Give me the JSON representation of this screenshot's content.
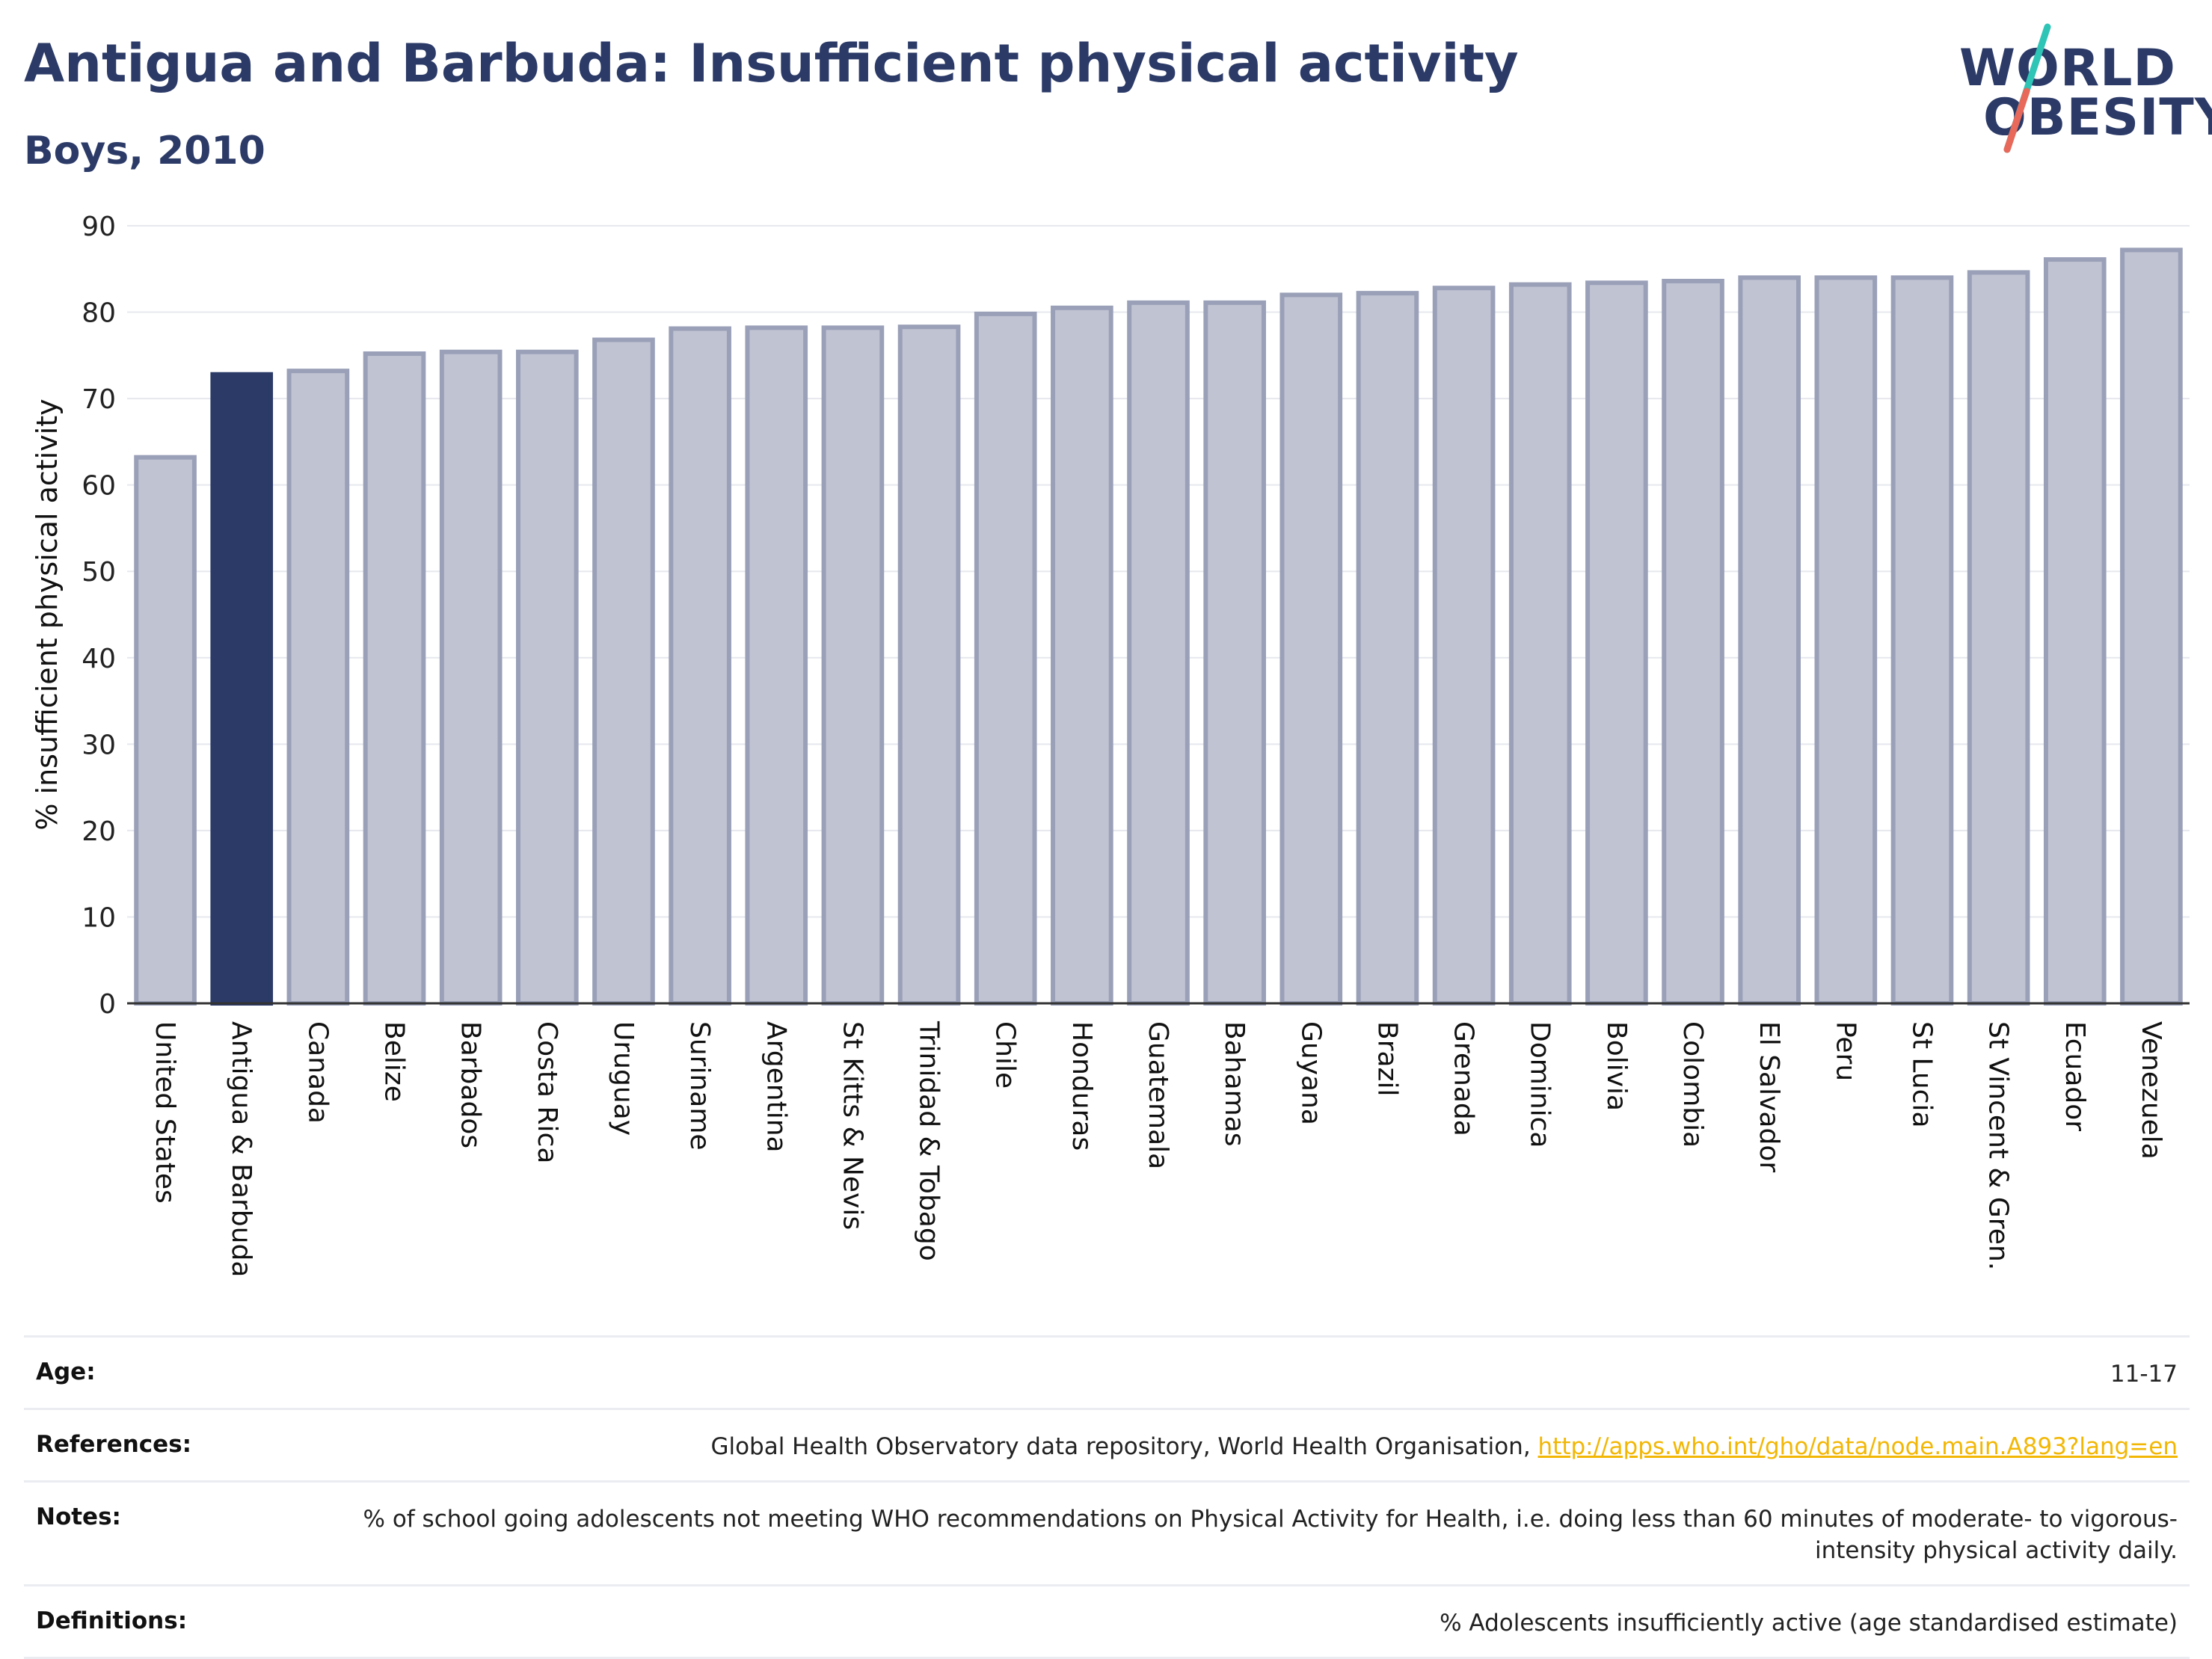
{
  "header": {
    "title": "Antigua and Barbuda: Insufficient physical activity",
    "subtitle": "Boys, 2010"
  },
  "logo": {
    "line1": "WORLD",
    "line2": "OBESITY",
    "colors": {
      "text": "#2b3a67",
      "slash_top": "#2ec4b6",
      "slash_bottom": "#e8685a"
    }
  },
  "colors": {
    "highlight_bar": "#2b3a67",
    "other_bar_fill": "#c0c3d2",
    "other_bar_stroke": "#9aa0b8",
    "grid": "#e6e8ee",
    "link": "#f2b705"
  },
  "chart_data": {
    "type": "bar",
    "title": "Antigua and Barbuda: Insufficient physical activity",
    "subtitle": "Boys, 2010",
    "ylabel": "% insufficient physical activity",
    "xlabel": "",
    "ylim": [
      0,
      90
    ],
    "yticks": [
      0,
      10,
      20,
      30,
      40,
      50,
      60,
      70,
      80,
      90
    ],
    "grid": true,
    "highlight": "Antigua & Barbuda",
    "categories": [
      "United States",
      "Antigua & Barbuda",
      "Canada",
      "Belize",
      "Barbados",
      "Costa Rica",
      "Uruguay",
      "Suriname",
      "Argentina",
      "St Kitts & Nevis",
      "Trinidad & Tobago",
      "Chile",
      "Honduras",
      "Guatemala",
      "Bahamas",
      "Guyana",
      "Brazil",
      "Grenada",
      "Dominica",
      "Bolivia",
      "Colombia",
      "El Salvador",
      "Peru",
      "St Lucia",
      "St Vincent & Gren.",
      "Ecuador",
      "Venezuela"
    ],
    "values": [
      63.2,
      72.8,
      73.2,
      75.2,
      75.4,
      75.4,
      76.8,
      78.1,
      78.2,
      78.2,
      78.3,
      79.8,
      80.5,
      81.1,
      81.1,
      82.0,
      82.2,
      82.8,
      83.2,
      83.4,
      83.6,
      84.0,
      84.0,
      84.0,
      84.6,
      86.1,
      87.2
    ]
  },
  "info": {
    "age_label": "Age:",
    "age_value": "11-17",
    "references_label": "References:",
    "references_text": "Global Health Observatory data repository, World Health Organisation, ",
    "references_link": "http://apps.who.int/gho/data/node.main.A893?lang=en",
    "notes_label": "Notes:",
    "notes_text": "% of school going adolescents not meeting WHO recommendations on Physical Activity for Health, i.e. doing less than 60 minutes of moderate- to vigorous-intensity physical activity daily.",
    "definitions_label": "Definitions:",
    "definitions_text": "% Adolescents insufficiently active (age standardised estimate)"
  }
}
